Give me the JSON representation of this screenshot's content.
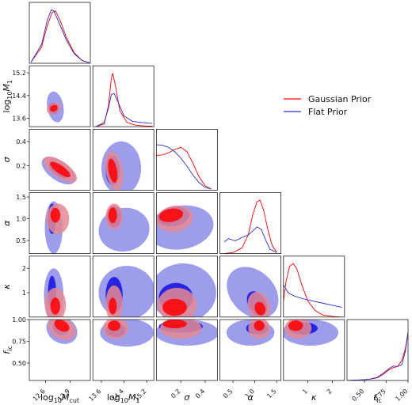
{
  "chart_data": {
    "type": "corner",
    "params": [
      {
        "key": "logMcut",
        "base": "log",
        "sub": "10",
        "main": "M",
        "msub": "cut",
        "range": [
          12.4,
          13.15
        ],
        "ticks": [
          "12.6",
          "12.9"
        ],
        "tickvals": [
          12.6,
          12.9
        ]
      },
      {
        "key": "logM1",
        "base": "log",
        "sub": "10",
        "main": "M",
        "msub": "1",
        "range": [
          13.3,
          15.45
        ],
        "ticks": [
          "13.6",
          "14.4",
          "15.2"
        ],
        "tickvals": [
          13.6,
          14.4,
          15.2
        ]
      },
      {
        "key": "sigma",
        "main": "σ",
        "range": [
          0.0,
          0.5
        ],
        "ticks": [
          "0.2",
          "0.4"
        ],
        "tickvals": [
          0.2,
          0.4
        ]
      },
      {
        "key": "alpha",
        "main": "α",
        "range": [
          0.2,
          1.6
        ],
        "ticks": [
          "0.5",
          "1.0",
          "1.5"
        ],
        "tickvals": [
          0.5,
          1.0,
          1.5
        ]
      },
      {
        "key": "kappa",
        "main": "κ",
        "range": [
          0.0,
          2.5
        ],
        "ticks": [
          "1",
          "2"
        ],
        "tickvals": [
          1,
          2
        ]
      },
      {
        "key": "fic",
        "main": "f",
        "msub": "ic",
        "range": [
          0.3,
          1.0
        ],
        "ticks": [
          "0.50",
          "0.75",
          "1.00"
        ],
        "tickvals": [
          0.5,
          0.75,
          1.0
        ]
      }
    ],
    "series": [
      {
        "name": "Gaussian Prior",
        "color": "#ff0000",
        "fill_outer": "#e58a93",
        "fill_inner": "#ff0000",
        "marginals": [
          {
            "x": [
              12.42,
              12.55,
              12.62,
              12.68,
              12.72,
              12.78,
              12.85,
              12.95,
              13.05,
              13.14
            ],
            "y": [
              0.02,
              0.3,
              0.7,
              0.95,
              0.98,
              0.8,
              0.5,
              0.2,
              0.05,
              0.01
            ]
          },
          {
            "x": [
              13.4,
              13.7,
              13.85,
              13.95,
              14.0,
              14.1,
              14.25,
              14.5,
              14.8,
              15.2,
              15.4
            ],
            "y": [
              0.0,
              0.05,
              0.4,
              0.9,
              1.0,
              0.75,
              0.3,
              0.08,
              0.03,
              0.01,
              0.01
            ]
          },
          {
            "x": [
              0.0,
              0.05,
              0.1,
              0.15,
              0.2,
              0.25,
              0.3,
              0.35,
              0.4,
              0.45
            ],
            "y": [
              0.65,
              0.66,
              0.7,
              0.76,
              0.8,
              0.72,
              0.5,
              0.25,
              0.08,
              0.02
            ]
          },
          {
            "x": [
              0.3,
              0.5,
              0.7,
              0.85,
              0.95,
              1.05,
              1.12,
              1.2,
              1.3,
              1.4,
              1.5
            ],
            "y": [
              0.0,
              0.02,
              0.1,
              0.35,
              0.72,
              0.97,
              1.0,
              0.82,
              0.45,
              0.15,
              0.03
            ]
          },
          {
            "x": [
              0.0,
              0.1,
              0.25,
              0.4,
              0.55,
              0.75,
              1.0,
              1.3,
              1.6,
              2.0,
              2.4
            ],
            "y": [
              0.3,
              0.65,
              0.95,
              1.0,
              0.9,
              0.6,
              0.3,
              0.12,
              0.04,
              0.01,
              0.0
            ]
          },
          {
            "x": [
              0.3,
              0.45,
              0.55,
              0.65,
              0.72,
              0.78,
              0.83,
              0.88,
              0.93,
              0.97,
              1.0
            ],
            "y": [
              0.0,
              0.01,
              0.02,
              0.05,
              0.12,
              0.2,
              0.24,
              0.26,
              0.38,
              0.6,
              0.9
            ]
          }
        ]
      },
      {
        "name": "Flat Prior",
        "color": "#2b2bd6",
        "fill_outer": "#8c8ce8",
        "fill_inner": "#1010e0",
        "marginals": [
          {
            "x": [
              12.42,
              12.55,
              12.62,
              12.67,
              12.7,
              12.76,
              12.85,
              12.95,
              13.05,
              13.14
            ],
            "y": [
              0.02,
              0.35,
              0.8,
              1.0,
              0.98,
              0.78,
              0.45,
              0.18,
              0.05,
              0.01
            ]
          },
          {
            "x": [
              13.4,
              13.7,
              13.85,
              13.95,
              14.05,
              14.2,
              14.4,
              14.7,
              15.0,
              15.4
            ],
            "y": [
              0.0,
              0.08,
              0.35,
              0.6,
              0.62,
              0.45,
              0.2,
              0.1,
              0.08,
              0.06
            ]
          },
          {
            "x": [
              0.0,
              0.05,
              0.1,
              0.15,
              0.2,
              0.25,
              0.3,
              0.35,
              0.4,
              0.45
            ],
            "y": [
              0.85,
              0.84,
              0.8,
              0.72,
              0.6,
              0.45,
              0.28,
              0.14,
              0.05,
              0.02
            ]
          },
          {
            "x": [
              0.3,
              0.4,
              0.55,
              0.7,
              0.85,
              0.95,
              1.05,
              1.15,
              1.25,
              1.35,
              1.5
            ],
            "y": [
              0.22,
              0.28,
              0.24,
              0.3,
              0.35,
              0.42,
              0.5,
              0.45,
              0.25,
              0.08,
              0.02
            ]
          },
          {
            "x": [
              0.0,
              0.2,
              0.5,
              1.0,
              1.5,
              2.0,
              2.4
            ],
            "y": [
              0.6,
              0.45,
              0.38,
              0.32,
              0.27,
              0.22,
              0.18
            ]
          },
          {
            "x": [
              0.3,
              0.45,
              0.55,
              0.65,
              0.72,
              0.78,
              0.83,
              0.88,
              0.93,
              0.97,
              1.0
            ],
            "y": [
              0.0,
              0.01,
              0.02,
              0.06,
              0.14,
              0.22,
              0.27,
              0.26,
              0.3,
              0.55,
              0.9
            ]
          }
        ]
      }
    ],
    "legend": {
      "position": "right",
      "entries": [
        "Gaussian Prior",
        "Flat Prior"
      ]
    }
  }
}
